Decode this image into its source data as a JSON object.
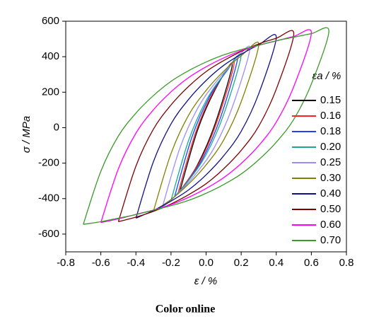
{
  "chart_data": {
    "type": "line",
    "xlabel": "ε / %",
    "ylabel": "σ / MPa",
    "legend_title": "εa / %",
    "caption": "Color online",
    "xlim": [
      -0.8,
      0.8
    ],
    "ylim": [
      -700,
      600
    ],
    "xticks": [
      -0.8,
      -0.6,
      -0.4,
      -0.2,
      {
        "value": 0,
        "label": "0.0"
      },
      0.2,
      0.4,
      0.6,
      0.8
    ],
    "yticks": [
      -600,
      -400,
      -200,
      0,
      200,
      400,
      600
    ],
    "legend": "right",
    "series": [
      {
        "name": "0.15",
        "color": "#000000",
        "x": [
          -0.15,
          -0.05,
          0.05,
          0.15,
          0.05,
          -0.05,
          -0.15
        ],
        "values": [
          -360,
          -18,
          211,
          360,
          18,
          -211,
          -360
        ]
      },
      {
        "name": "0.16",
        "color": "#ff2020",
        "x": [
          -0.16,
          -0.06,
          0.04,
          0.16,
          0.06,
          -0.04,
          -0.16
        ],
        "values": [
          -370,
          -29,
          199,
          370,
          29,
          -199,
          -370
        ]
      },
      {
        "name": "0.18",
        "color": "#2040ff",
        "x": [
          -0.18,
          -0.08,
          0.02,
          0.12,
          0.18,
          0.08,
          -0.02,
          -0.12,
          -0.18
        ],
        "values": [
          -390,
          -51,
          175,
          322,
          390,
          51,
          -175,
          -322,
          -390
        ]
      },
      {
        "name": "0.20",
        "color": "#1aa89a",
        "x": [
          -0.2,
          -0.1,
          0,
          0.1,
          0.2,
          0.1,
          0,
          -0.1,
          -0.2
        ],
        "values": [
          -410,
          -73,
          152,
          298,
          410,
          73,
          -152,
          -298,
          -410
        ]
      },
      {
        "name": "0.25",
        "color": "#9c8cff",
        "x": [
          -0.25,
          -0.15,
          -0.05,
          0.05,
          0.15,
          0.25,
          0.15,
          0.05,
          -0.05,
          -0.15,
          -0.25
        ],
        "values": [
          -450,
          -117,
          106,
          250,
          361,
          450,
          117,
          -106,
          -250,
          -361,
          -450
        ]
      },
      {
        "name": "0.30",
        "color": "#808000",
        "x": [
          -0.3,
          -0.2,
          -0.1,
          0,
          0.1,
          0.2,
          0.3,
          0.2,
          0.1,
          0,
          -0.1,
          -0.2,
          -0.3
        ],
        "values": [
          -470,
          -146,
          70,
          210,
          318,
          405,
          470,
          146,
          -70,
          -210,
          -318,
          -405,
          -470
        ]
      },
      {
        "name": "0.40",
        "color": "#10108a",
        "x": [
          -0.4,
          -0.3,
          -0.2,
          -0.1,
          0,
          0.1,
          0.2,
          0.3,
          0.4,
          0.3,
          0.2,
          0.1,
          0,
          -0.1,
          -0.2,
          -0.3,
          -0.4
        ],
        "values": [
          -510,
          -191,
          21,
          159,
          266,
          351,
          414,
          467,
          510,
          191,
          -21,
          -159,
          -266,
          -351,
          -414,
          -467,
          -510
        ]
      },
      {
        "name": "0.50",
        "color": "#800000",
        "x": [
          -0.5,
          -0.4,
          -0.3,
          -0.2,
          -0.1,
          0,
          0.1,
          0.2,
          0.3,
          0.4,
          0.5,
          0.4,
          0.3,
          0.2,
          0.1,
          0,
          -0.1,
          -0.2,
          -0.3,
          -0.4,
          -0.5
        ],
        "values": [
          -530,
          -217,
          -8,
          128,
          232,
          316,
          378,
          430,
          472,
          504,
          530,
          217,
          8,
          -128,
          -232,
          -316,
          -378,
          -430,
          -472,
          -504,
          -530
        ]
      },
      {
        "name": "0.60",
        "color": "#ff00ff",
        "x": [
          -0.6,
          -0.5,
          -0.4,
          -0.3,
          -0.2,
          -0.1,
          0,
          0.1,
          0.2,
          0.3,
          0.4,
          0.5,
          0.6,
          0.5,
          0.4,
          0.3,
          0.2,
          0.1,
          0,
          -0.1,
          -0.2,
          -0.3,
          -0.4,
          -0.5,
          -0.6
        ],
        "values": [
          -535,
          -232,
          -31,
          101,
          202,
          282,
          343,
          393,
          434,
          464,
          489,
          514,
          535,
          232,
          31,
          -101,
          -202,
          -282,
          -343,
          -393,
          -434,
          -464,
          -489,
          -514,
          -535
        ]
      },
      {
        "name": "0.70",
        "color": "#3a9a2a",
        "x": [
          -0.7,
          -0.6,
          -0.5,
          -0.4,
          -0.3,
          -0.2,
          -0.1,
          0,
          0.1,
          0.2,
          0.3,
          0.4,
          0.5,
          0.6,
          0.7,
          0.6,
          0.5,
          0.4,
          0.3,
          0.2,
          0.1,
          0,
          -0.1,
          -0.2,
          -0.3,
          -0.4,
          -0.5,
          -0.6,
          -0.7
        ],
        "values": [
          -545,
          -246,
          -47,
          82,
          181,
          261,
          321,
          370,
          410,
          440,
          465,
          490,
          510,
          530,
          545,
          246,
          47,
          -82,
          -181,
          -261,
          -321,
          -370,
          -410,
          -440,
          -465,
          -490,
          -510,
          -530,
          -545
        ]
      }
    ]
  }
}
